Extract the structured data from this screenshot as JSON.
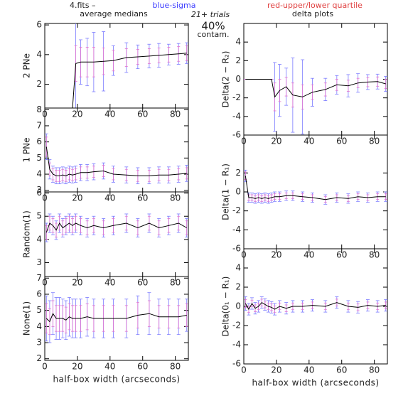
{
  "header": {
    "file": "4.fits  –",
    "title": "average medians",
    "sigma": "blue-sigma",
    "quartile": "red-upper/lower quartile",
    "trials": "21+ trials",
    "contam": "40%",
    "contam_label": "contam.",
    "right_title": "delta plots"
  },
  "chart_data": [
    {
      "type": "line",
      "ylabel": "2 PNe",
      "x": [
        1,
        3,
        5,
        7,
        9,
        11,
        13,
        15,
        17,
        19,
        22,
        26,
        30,
        36,
        42,
        50,
        57,
        64,
        70,
        76,
        82,
        87
      ],
      "xlim": [
        0,
        88
      ],
      "xticks": [
        0,
        20,
        40,
        60,
        80
      ],
      "ylim": [
        0.4,
        6.1
      ],
      "yticks": [
        2,
        4,
        6
      ],
      "values": [
        null,
        null,
        null,
        null,
        null,
        null,
        null,
        null,
        0.4,
        3.4,
        3.5,
        3.5,
        3.5,
        3.55,
        3.6,
        3.8,
        3.85,
        3.9,
        3.95,
        4.0,
        4.05,
        4.1
      ],
      "errors": [
        null,
        null,
        null,
        null,
        null,
        null,
        null,
        null,
        0,
        3,
        1.5,
        1.6,
        2,
        2,
        1,
        1,
        0.8,
        0.8,
        0.8,
        0.7,
        0.7,
        0.7
      ],
      "quartiles": [
        null,
        null,
        null,
        null,
        null,
        null,
        null,
        null,
        0,
        1.2,
        1,
        1,
        1,
        0.9,
        0.7,
        0.6,
        0.5,
        0.5,
        0.5,
        0.5,
        0.5,
        0.5
      ],
      "color": "#000000",
      "error_color": "#7a7aff",
      "quartile_color": "#e070d0"
    },
    {
      "type": "line",
      "ylabel": "1 PNe",
      "x": [
        1,
        3,
        5,
        7,
        9,
        11,
        13,
        15,
        17,
        19,
        22,
        26,
        30,
        36,
        42,
        50,
        57,
        64,
        70,
        76,
        82,
        87
      ],
      "xlim": [
        0,
        88
      ],
      "xticks": [
        0,
        20,
        40,
        60,
        80
      ],
      "ylim": [
        2.9,
        8.1
      ],
      "yticks": [
        3,
        4,
        5,
        6,
        7,
        8
      ],
      "values": [
        5.7,
        4.3,
        4.0,
        3.9,
        3.9,
        3.95,
        3.9,
        4.0,
        3.95,
        4.0,
        4.1,
        4.1,
        4.15,
        4.2,
        4.0,
        3.95,
        3.9,
        3.9,
        3.95,
        3.95,
        4.0,
        4.05
      ],
      "errors": [
        0.8,
        0.6,
        0.5,
        0.5,
        0.5,
        0.5,
        0.5,
        0.5,
        0.5,
        0.5,
        0.5,
        0.5,
        0.5,
        0.5,
        0.5,
        0.5,
        0.5,
        0.5,
        0.5,
        0.5,
        0.5,
        0.5
      ],
      "quartiles": [
        0.6,
        0.4,
        0.35,
        0.35,
        0.35,
        0.35,
        0.35,
        0.35,
        0.35,
        0.35,
        0.35,
        0.35,
        0.35,
        0.35,
        0.35,
        0.35,
        0.35,
        0.35,
        0.35,
        0.35,
        0.35,
        0.35
      ],
      "color": "#000000",
      "error_color": "#7a7aff",
      "quartile_color": "#e070d0"
    },
    {
      "type": "line",
      "ylabel": "Random(1)",
      "x": [
        1,
        3,
        5,
        7,
        9,
        11,
        13,
        15,
        17,
        19,
        22,
        26,
        30,
        36,
        42,
        50,
        57,
        64,
        70,
        76,
        82,
        87
      ],
      "xlim": [
        0,
        88
      ],
      "xticks": [
        0,
        20,
        40,
        60,
        80
      ],
      "ylim": [
        2.4,
        6.05
      ],
      "yticks": [
        3,
        4,
        5,
        6
      ],
      "values": [
        4.3,
        4.7,
        4.6,
        4.4,
        4.7,
        4.5,
        4.6,
        4.7,
        4.6,
        4.7,
        4.6,
        4.5,
        4.6,
        4.5,
        4.6,
        4.7,
        4.5,
        4.7,
        4.5,
        4.6,
        4.7,
        4.5
      ],
      "errors": [
        0.4,
        0.4,
        0.4,
        0.4,
        0.4,
        0.4,
        0.4,
        0.4,
        0.4,
        0.4,
        0.4,
        0.4,
        0.4,
        0.4,
        0.4,
        0.4,
        0.4,
        0.4,
        0.4,
        0.4,
        0.4,
        0.4
      ],
      "quartiles": [
        0.3,
        0.3,
        0.3,
        0.3,
        0.3,
        0.3,
        0.3,
        0.3,
        0.3,
        0.3,
        0.3,
        0.3,
        0.3,
        0.3,
        0.3,
        0.3,
        0.3,
        0.3,
        0.3,
        0.3,
        0.3,
        0.3
      ],
      "color": "#000000",
      "error_color": "#7a7aff",
      "quartile_color": "#e070d0"
    },
    {
      "type": "line",
      "ylabel": "None(1)",
      "xlabel": "half-box width (arcseconds)",
      "x": [
        1,
        3,
        5,
        7,
        9,
        11,
        13,
        15,
        17,
        19,
        22,
        26,
        30,
        36,
        42,
        50,
        57,
        64,
        70,
        76,
        82,
        87
      ],
      "xlim": [
        0,
        88
      ],
      "xticks": [
        0,
        20,
        40,
        60,
        80
      ],
      "ylim": [
        1.9,
        7.1
      ],
      "yticks": [
        2,
        3,
        4,
        5,
        6,
        7
      ],
      "values": [
        4.5,
        4.3,
        4.8,
        4.5,
        4.5,
        4.5,
        4.4,
        4.6,
        4.5,
        4.5,
        4.5,
        4.6,
        4.5,
        4.5,
        4.5,
        4.5,
        4.7,
        4.8,
        4.6,
        4.6,
        4.6,
        4.7
      ],
      "errors": [
        1.4,
        1.3,
        1.3,
        1.3,
        1.3,
        1.2,
        1.2,
        1.2,
        1.2,
        1.2,
        1.2,
        1.2,
        1.2,
        1.2,
        1.2,
        1.2,
        1.2,
        1.3,
        1.1,
        1.1,
        1.1,
        1.0
      ],
      "quartiles": [
        0.9,
        0.8,
        0.8,
        0.8,
        0.8,
        0.8,
        0.8,
        0.8,
        0.8,
        0.8,
        0.8,
        0.8,
        0.8,
        0.8,
        0.8,
        0.8,
        0.8,
        0.8,
        0.7,
        0.7,
        0.7,
        0.7
      ],
      "color": "#000000",
      "error_color": "#7a7aff",
      "quartile_color": "#e070d0"
    },
    {
      "type": "line",
      "ylabel": "Delta(2 − R₂)",
      "x": [
        1,
        3,
        5,
        7,
        9,
        11,
        13,
        15,
        17,
        19,
        22,
        26,
        30,
        36,
        42,
        50,
        57,
        64,
        70,
        76,
        82,
        87
      ],
      "xlim": [
        0,
        88
      ],
      "xticks": [
        0,
        20,
        40,
        60,
        80
      ],
      "ylim": [
        -6,
        6
      ],
      "yticks": [
        -6,
        -4,
        -2,
        0,
        2,
        4
      ],
      "values": [
        0,
        0,
        0,
        0,
        0,
        0,
        0,
        0,
        0,
        -1.9,
        -1.2,
        -0.8,
        -1.7,
        -1.9,
        -1.4,
        -1.1,
        -0.6,
        -0.7,
        -0.4,
        -0.3,
        -0.25,
        -0.5
      ],
      "errors": [
        0,
        0,
        0,
        0,
        0,
        0,
        0,
        0,
        0,
        3.7,
        2.8,
        2,
        4,
        4,
        1.5,
        1.2,
        1,
        1.2,
        1,
        0.8,
        0.8,
        0.8
      ],
      "quartiles": [
        0,
        0,
        0,
        0,
        0,
        0,
        0,
        0,
        0,
        1.5,
        1.2,
        1,
        1.3,
        1.3,
        0.8,
        0.7,
        0.6,
        0.6,
        0.5,
        0.5,
        0.5,
        0.5
      ],
      "color": "#000000",
      "error_color": "#7a7aff",
      "quartile_color": "#e070d0"
    },
    {
      "type": "line",
      "ylabel": "Delta(1 − R₁)",
      "x": [
        1,
        3,
        5,
        7,
        9,
        11,
        13,
        15,
        17,
        19,
        22,
        26,
        30,
        36,
        42,
        50,
        57,
        64,
        70,
        76,
        82,
        87
      ],
      "xlim": [
        0,
        88
      ],
      "xticks": [
        0,
        20,
        40,
        60,
        80
      ],
      "ylim": [
        -6,
        6
      ],
      "yticks": [
        -6,
        -4,
        -2,
        0,
        2
      ],
      "values": [
        1.7,
        -0.6,
        -0.6,
        -0.7,
        -0.6,
        -0.7,
        -0.6,
        -0.7,
        -0.6,
        -0.5,
        -0.5,
        -0.4,
        -0.4,
        -0.5,
        -0.6,
        -0.8,
        -0.6,
        -0.7,
        -0.5,
        -0.6,
        -0.5,
        -0.5
      ],
      "errors": [
        0.6,
        0.5,
        0.5,
        0.5,
        0.5,
        0.5,
        0.5,
        0.5,
        0.5,
        0.5,
        0.5,
        0.5,
        0.5,
        0.5,
        0.5,
        0.5,
        0.5,
        0.5,
        0.5,
        0.5,
        0.5,
        0.5
      ],
      "quartiles": [
        0.4,
        0.3,
        0.3,
        0.3,
        0.3,
        0.3,
        0.3,
        0.3,
        0.3,
        0.3,
        0.3,
        0.3,
        0.3,
        0.3,
        0.3,
        0.3,
        0.3,
        0.3,
        0.3,
        0.3,
        0.3,
        0.3
      ],
      "color": "#000000",
      "error_color": "#7a7aff",
      "quartile_color": "#e070d0"
    },
    {
      "type": "line",
      "ylabel": "Delta(0₁ − R₁)",
      "xlabel": "half-box width (arcseconds)",
      "x": [
        1,
        3,
        5,
        7,
        9,
        11,
        13,
        15,
        17,
        19,
        22,
        26,
        30,
        36,
        42,
        50,
        57,
        64,
        70,
        76,
        82,
        87
      ],
      "xlim": [
        0,
        88
      ],
      "xticks": [
        0,
        20,
        40,
        60,
        80
      ],
      "ylim": [
        -6,
        6
      ],
      "yticks": [
        -6,
        -4,
        -2,
        0,
        2,
        4
      ],
      "values": [
        0.3,
        -0.3,
        0.3,
        -0.2,
        0.0,
        0.4,
        0.2,
        0,
        -0.1,
        -0.3,
        0,
        -0.2,
        0,
        0,
        0.1,
        0,
        0.4,
        0,
        -0.1,
        0.1,
        0,
        0.1
      ],
      "errors": [
        0.7,
        0.6,
        0.6,
        0.6,
        0.6,
        0.6,
        0.6,
        0.6,
        0.6,
        0.6,
        0.6,
        0.6,
        0.6,
        0.6,
        0.6,
        0.6,
        0.6,
        0.6,
        0.6,
        0.6,
        0.6,
        0.6
      ],
      "quartiles": [
        0.4,
        0.35,
        0.35,
        0.35,
        0.35,
        0.35,
        0.35,
        0.35,
        0.35,
        0.35,
        0.35,
        0.35,
        0.35,
        0.35,
        0.35,
        0.35,
        0.35,
        0.35,
        0.35,
        0.35,
        0.35,
        0.35
      ],
      "color": "#000000",
      "error_color": "#7a7aff",
      "quartile_color": "#e070d0"
    }
  ]
}
